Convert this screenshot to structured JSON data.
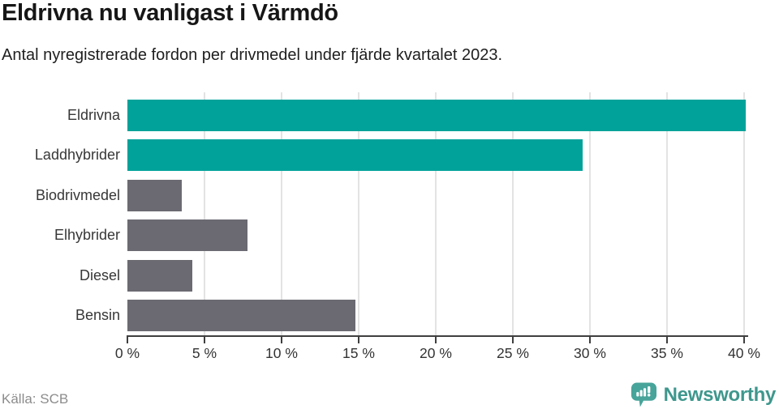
{
  "chart_data": {
    "type": "bar",
    "orientation": "horizontal",
    "title": "Eldrivna nu vanligast i Värmdö",
    "subtitle": "Antal nyregistrerade fordon per drivmedel under fjärde kvartalet 2023.",
    "categories": [
      "Eldrivna",
      "Laddhybrider",
      "Biodrivmedel",
      "Elhybrider",
      "Diesel",
      "Bensin"
    ],
    "values": [
      40.1,
      29.5,
      3.5,
      7.8,
      4.2,
      14.8
    ],
    "unit": "%",
    "bar_colors": [
      "#00a29a",
      "#00a29a",
      "#6b6a72",
      "#6b6a72",
      "#6b6a72",
      "#6b6a72"
    ],
    "accent_color": "#00a29a",
    "muted_bar_color": "#6b6a72",
    "xlim": [
      0,
      40
    ],
    "x_ticks": [
      0,
      5,
      10,
      15,
      20,
      25,
      30,
      35,
      40
    ],
    "x_tick_labels": [
      "0 %",
      "5 %",
      "10 %",
      "15 %",
      "20 %",
      "25 %",
      "30 %",
      "35 %",
      "40 %"
    ],
    "xlabel": "",
    "ylabel": "",
    "grid": "vertical-only",
    "legend": "none",
    "grid_color": "#e3e3e3",
    "axis_color": "#3f3f3f"
  },
  "footer": {
    "source": "Källa: SCB",
    "brand": "Newsworthy",
    "brand_text_color": "#3e978d",
    "brand_icon_color": "#47a49a"
  }
}
